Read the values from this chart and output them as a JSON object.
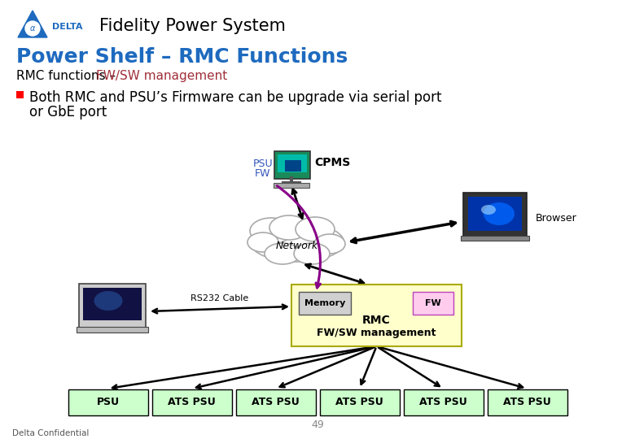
{
  "title_main": "Fidelity Power System",
  "title_sub": "Power Shelf – RMC Functions",
  "subtitle_black": "RMC functions – ",
  "subtitle_red": "FW/SW management",
  "bullet_text_line1": "Both RMC and PSU’s Firmware can be upgrade via serial port",
  "bullet_text_line2": "or GbE port",
  "rmc_box_label": "RMC",
  "rmc_box_sub": "FW/SW management",
  "memory_label": "Memory",
  "fw_label": "FW",
  "rs232_label": "RS232 Cable",
  "cpms_label": "CPMS",
  "psu_fw_label1": "PSU",
  "psu_fw_label2": "FW",
  "network_label": "Network",
  "browser_label": "Browser",
  "bottom_boxes": [
    "PSU",
    "ATS PSU",
    "ATS PSU",
    "ATS PSU",
    "ATS PSU",
    "ATS PSU"
  ],
  "page_number": "49",
  "footer": "Delta Confidential",
  "bg_color": "#ffffff",
  "title_main_color": "#000000",
  "title_sub_color": "#1e6abf",
  "subtitle_red_color": "#a0303a",
  "subtitle_black_color": "#000000",
  "rmc_box_fill": "#ffffcc",
  "memory_box_fill": "#d0d0d0",
  "fw_box_fill": "#ffccee",
  "bottom_box_fill": "#ccffcc",
  "bottom_box_edge": "#000000",
  "arrow_color": "#000000",
  "purple_line_color": "#880088",
  "delta_blue": "#1e6abf"
}
